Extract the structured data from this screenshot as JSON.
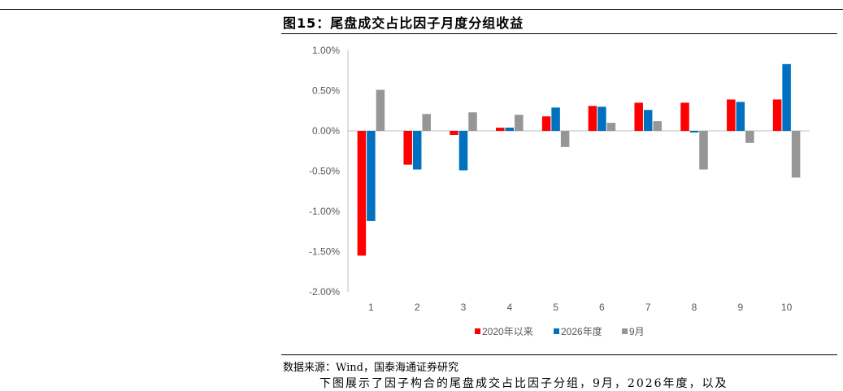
{
  "figure": {
    "title": "图15：尾盘成交占比因子月度分组收益",
    "source": "数据来源：Wind，国泰海通证券研究",
    "cut_text": "下图展示了因子构合的尾盘成交占比因子分组，9月，2026年度，以及"
  },
  "chart_data": {
    "type": "bar",
    "categories": [
      "1",
      "2",
      "3",
      "4",
      "5",
      "6",
      "7",
      "8",
      "9",
      "10"
    ],
    "series": [
      {
        "name": "2020年以来",
        "color": "#FF0000",
        "values": [
          -1.55,
          -0.42,
          -0.05,
          0.04,
          0.18,
          0.31,
          0.35,
          0.35,
          0.39,
          0.39
        ]
      },
      {
        "name": "2026年度",
        "color": "#0070C0",
        "values": [
          -1.12,
          -0.48,
          -0.49,
          0.04,
          0.29,
          0.3,
          0.26,
          -0.02,
          0.36,
          0.83
        ]
      },
      {
        "name": "9月",
        "color": "#969696",
        "values": [
          0.51,
          0.21,
          0.23,
          0.2,
          -0.2,
          0.1,
          0.12,
          -0.48,
          -0.15,
          -0.58
        ]
      }
    ],
    "yticks": [
      "1.00%",
      "0.50%",
      "0.00%",
      "-0.50%",
      "-1.00%",
      "-1.50%",
      "-2.00%"
    ],
    "ylim": [
      -2.0,
      1.0
    ],
    "legend_position": "bottom",
    "grid": false
  }
}
